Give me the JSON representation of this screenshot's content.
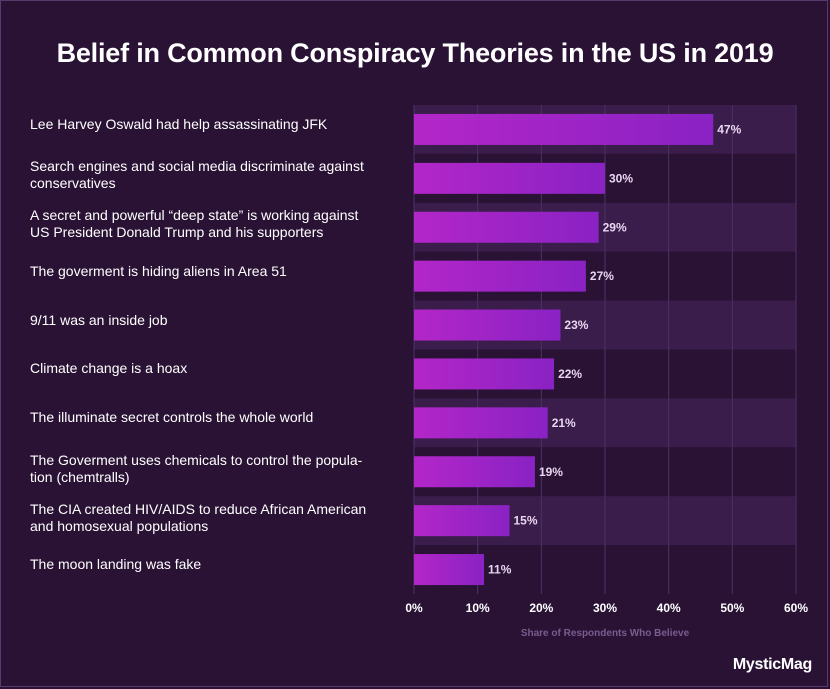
{
  "chart_data": {
    "type": "bar",
    "orientation": "horizontal",
    "title": "Belief in Common Conspiracy Theories in the US in 2019",
    "xlabel": "Share of Respondents Who Believe",
    "ylabel": "",
    "xlim": [
      0,
      60
    ],
    "ticks": [
      0,
      10,
      20,
      30,
      40,
      50,
      60
    ],
    "tick_labels": [
      "0%",
      "10%",
      "20%",
      "30%",
      "40%",
      "50%",
      "60%"
    ],
    "categories": [
      "Lee Harvey Oswald had help assassinating JFK",
      "Search engines and social media discriminate against conservatives",
      "A secret and powerful “deep state” is working against US President Donald Trump  and his supporters",
      "The goverment is hiding aliens in Area 51",
      "9/11 was an inside job",
      "Climate change is a hoax",
      "The illuminate secret controls the whole world",
      "The Goverment uses chemicals to control the popula-tion (chemtralls)",
      "The CIA created HIV/AIDS to reduce African American and homosexual populations",
      "The moon landing was fake"
    ],
    "category_lines": [
      [
        "Lee Harvey Oswald had help assassinating JFK"
      ],
      [
        "Search engines and social media discriminate against",
        "conservatives"
      ],
      [
        "A secret and powerful “deep state” is working against",
        "US President Donald Trump  and his supporters"
      ],
      [
        "The goverment is hiding aliens in Area 51"
      ],
      [
        "9/11 was an inside job"
      ],
      [
        "Climate change is a hoax"
      ],
      [
        "The illuminate secret controls the whole world"
      ],
      [
        "The Goverment uses chemicals to control the popula-",
        "tion (chemtralls)"
      ],
      [
        "The CIA created HIV/AIDS to reduce African American",
        "and homosexual populations"
      ],
      [
        "The moon landing was fake"
      ]
    ],
    "values": [
      47,
      30,
      29,
      27,
      23,
      22,
      21,
      19,
      15,
      11
    ],
    "data_labels": [
      "47%",
      "30%",
      "29%",
      "27%",
      "23%",
      "22%",
      "21%",
      "19%",
      "15%",
      "11%"
    ],
    "colors": {
      "bar_start": "#b326c8",
      "bar_end": "#8a22c4",
      "band_light": "#3b1d4c",
      "band_dark": "#2a1235",
      "grid": "#4e3163"
    }
  },
  "brand": "MysticMag"
}
